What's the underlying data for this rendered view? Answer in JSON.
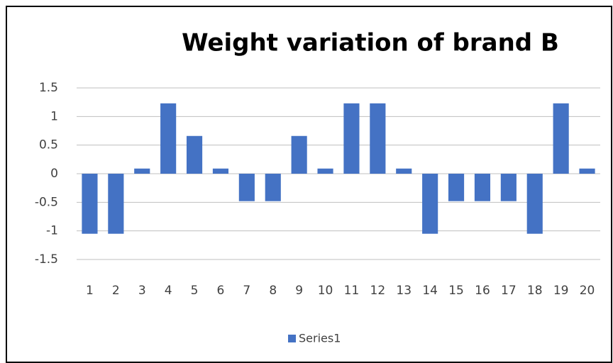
{
  "chart_data": {
    "type": "bar",
    "title": "Weight variation of brand B",
    "categories": [
      "1",
      "2",
      "3",
      "4",
      "5",
      "6",
      "7",
      "8",
      "9",
      "10",
      "11",
      "12",
      "13",
      "14",
      "15",
      "16",
      "17",
      "18",
      "19",
      "20"
    ],
    "series": [
      {
        "name": "Series1",
        "color": "#4472c4",
        "values": [
          -1.05,
          -1.05,
          0.09,
          1.23,
          0.66,
          0.09,
          -0.48,
          -0.48,
          0.66,
          0.09,
          1.23,
          1.23,
          0.09,
          -1.05,
          -0.48,
          -0.48,
          -0.48,
          -1.05,
          1.23,
          0.09
        ]
      }
    ],
    "ylim": [
      -1.5,
      1.5
    ],
    "yticks": [
      -1.5,
      -1,
      -0.5,
      0,
      0.5,
      1,
      1.5
    ],
    "grid": true,
    "legend": "bottom"
  }
}
